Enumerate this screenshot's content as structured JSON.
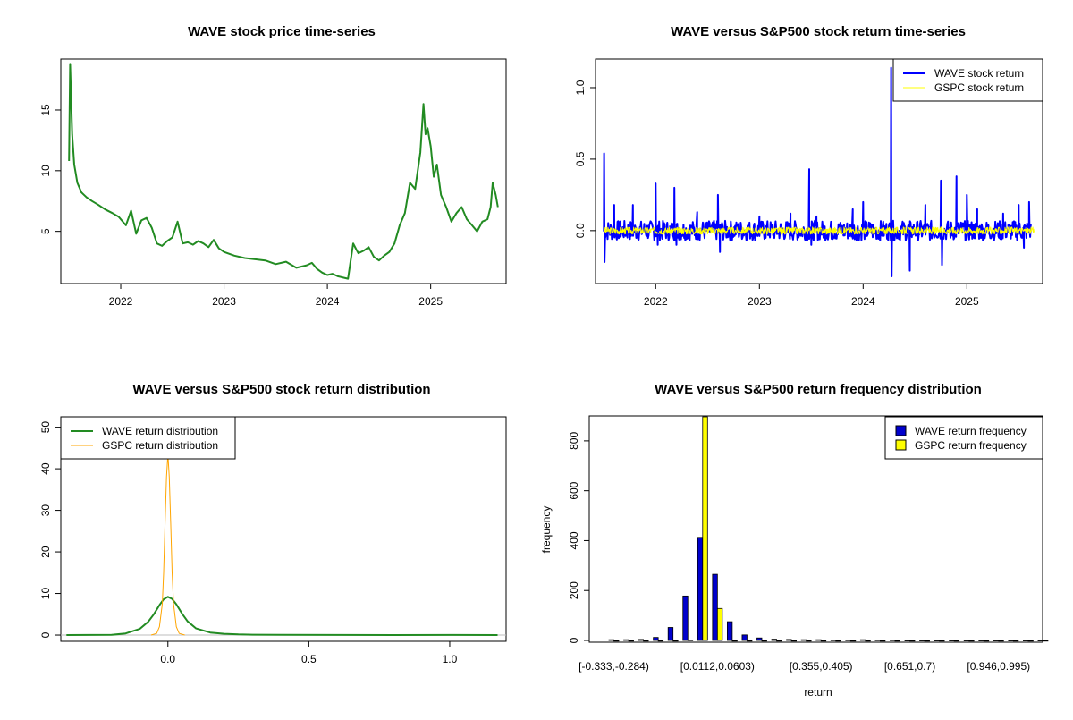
{
  "colors": {
    "wave_price": "#228B22",
    "wave_return": "#0000FF",
    "gspc_return": "#FFFF00",
    "wave_density": "#228B22",
    "gspc_density": "#FFA500",
    "wave_bar": "#0000CD",
    "gspc_bar": "#FFFF00",
    "axis": "#000000",
    "zero_line": "#BEBEBE"
  },
  "chart_data": [
    {
      "type": "line",
      "id": "price",
      "title": "WAVE stock price time-series",
      "xlabel": "",
      "ylabel": "",
      "xlim": [
        2021.42,
        2025.73
      ],
      "ylim": [
        0.7,
        19.2
      ],
      "x_ticks": [
        2022,
        2023,
        2024,
        2025
      ],
      "x_tick_labels": [
        "2022",
        "2023",
        "2024",
        "2025"
      ],
      "y_ticks": [
        5,
        10,
        15
      ],
      "y_tick_labels": [
        "5",
        "10",
        "15"
      ],
      "series": [
        {
          "name": "WAVE price",
          "x": [
            2021.5,
            2021.51,
            2021.53,
            2021.55,
            2021.58,
            2021.62,
            2021.67,
            2021.72,
            2021.78,
            2021.85,
            2021.92,
            2021.98,
            2022.05,
            2022.1,
            2022.15,
            2022.2,
            2022.25,
            2022.3,
            2022.35,
            2022.4,
            2022.45,
            2022.5,
            2022.55,
            2022.6,
            2022.65,
            2022.7,
            2022.75,
            2022.8,
            2022.85,
            2022.9,
            2022.95,
            2023.0,
            2023.1,
            2023.2,
            2023.3,
            2023.4,
            2023.5,
            2023.6,
            2023.7,
            2023.8,
            2023.85,
            2023.9,
            2023.95,
            2024.0,
            2024.05,
            2024.1,
            2024.2,
            2024.25,
            2024.28,
            2024.3,
            2024.35,
            2024.4,
            2024.45,
            2024.5,
            2024.55,
            2024.6,
            2024.65,
            2024.7,
            2024.75,
            2024.8,
            2024.85,
            2024.9,
            2024.93,
            2024.95,
            2024.97,
            2025.0,
            2025.03,
            2025.06,
            2025.1,
            2025.15,
            2025.2,
            2025.25,
            2025.3,
            2025.35,
            2025.4,
            2025.45,
            2025.5,
            2025.55,
            2025.58,
            2025.6,
            2025.63,
            2025.65
          ],
          "values": [
            10.8,
            18.8,
            13.0,
            10.5,
            9.0,
            8.2,
            7.8,
            7.5,
            7.2,
            6.8,
            6.5,
            6.2,
            5.5,
            6.7,
            4.8,
            5.9,
            6.1,
            5.3,
            4.0,
            3.8,
            4.2,
            4.5,
            5.8,
            4.0,
            4.1,
            3.9,
            4.2,
            4.0,
            3.7,
            4.3,
            3.6,
            3.3,
            3.0,
            2.8,
            2.7,
            2.6,
            2.3,
            2.5,
            2.0,
            2.2,
            2.4,
            1.9,
            1.6,
            1.4,
            1.5,
            1.3,
            1.1,
            4.0,
            3.5,
            3.2,
            3.4,
            3.7,
            2.9,
            2.6,
            3.0,
            3.3,
            4.0,
            5.5,
            6.5,
            9.0,
            8.5,
            11.5,
            15.5,
            13.0,
            13.5,
            12.0,
            9.5,
            10.5,
            8.0,
            7.0,
            5.8,
            6.5,
            7.0,
            6.0,
            5.5,
            5.0,
            5.8,
            6.0,
            7.0,
            9.0,
            8.0,
            7.0
          ]
        }
      ]
    },
    {
      "type": "line",
      "id": "returns",
      "title": "WAVE versus S&P500 stock return time-series",
      "xlabel": "",
      "ylabel": "",
      "xlim": [
        2021.42,
        2025.73
      ],
      "ylim": [
        -0.37,
        1.2
      ],
      "x_ticks": [
        2022,
        2023,
        2024,
        2025
      ],
      "x_tick_labels": [
        "2022",
        "2023",
        "2024",
        "2025"
      ],
      "y_ticks": [
        0.0,
        0.5,
        1.0
      ],
      "y_tick_labels": [
        "0.0",
        "0.5",
        "1.0"
      ],
      "legend": {
        "placement": "top-right",
        "entries": [
          "WAVE stock return",
          "GSPC stock return"
        ]
      },
      "series": [
        {
          "name": "WAVE stock return",
          "x": [
            2021.5,
            2021.503,
            2021.507,
            2021.52,
            2021.6,
            2021.78,
            2022.0,
            2022.02,
            2022.18,
            2022.2,
            2022.4,
            2022.6,
            2022.62,
            2023.0,
            2023.3,
            2023.48,
            2023.5,
            2023.55,
            2023.9,
            2024.0,
            2024.27,
            2024.275,
            2024.28,
            2024.45,
            2024.6,
            2024.75,
            2024.76,
            2024.9,
            2025.0,
            2025.1,
            2025.35,
            2025.5,
            2025.55,
            2025.6,
            2025.62
          ],
          "values": [
            0.0,
            0.54,
            -0.22,
            0.0,
            0.18,
            0.18,
            0.33,
            -0.1,
            0.3,
            -0.1,
            0.13,
            0.25,
            -0.15,
            0.1,
            0.12,
            0.43,
            -0.1,
            0.1,
            0.15,
            0.2,
            1.14,
            -0.32,
            0.0,
            -0.28,
            0.18,
            0.35,
            -0.24,
            0.38,
            0.25,
            0.15,
            0.12,
            0.18,
            -0.12,
            0.2,
            -0.05
          ]
        },
        {
          "name": "GSPC stock return",
          "x": [
            2021.5,
            2025.65
          ],
          "values": [
            -0.03,
            0.03
          ]
        }
      ]
    },
    {
      "type": "line",
      "id": "density",
      "title": "WAVE versus S&P500 stock return distribution",
      "xlabel": "",
      "ylabel": "",
      "xlim": [
        -0.38,
        1.2
      ],
      "ylim": [
        -1.5,
        52.5
      ],
      "x_ticks": [
        0.0,
        0.5,
        1.0
      ],
      "x_tick_labels": [
        "0.0",
        "0.5",
        "1.0"
      ],
      "y_ticks": [
        0,
        10,
        20,
        30,
        40,
        50
      ],
      "y_tick_labels": [
        "0",
        "10",
        "20",
        "30",
        "40",
        "50"
      ],
      "legend": {
        "placement": "top-left",
        "entries": [
          "WAVE return distribution",
          "GSPC return distribution"
        ]
      },
      "series": [
        {
          "name": "WAVE return distribution",
          "x": [
            -0.36,
            -0.2,
            -0.15,
            -0.1,
            -0.07,
            -0.05,
            -0.03,
            -0.015,
            0.0,
            0.015,
            0.03,
            0.05,
            0.07,
            0.1,
            0.15,
            0.2,
            0.25,
            0.3,
            0.4,
            0.6,
            0.8,
            1.0,
            1.17
          ],
          "values": [
            0.0,
            0.05,
            0.4,
            1.5,
            3.2,
            5.0,
            7.2,
            8.6,
            9.2,
            8.7,
            7.4,
            5.2,
            3.3,
            1.6,
            0.6,
            0.3,
            0.15,
            0.1,
            0.05,
            0.02,
            0.01,
            0.02,
            0.0
          ]
        },
        {
          "name": "GSPC return distribution",
          "x": [
            -0.06,
            -0.04,
            -0.03,
            -0.02,
            -0.015,
            -0.01,
            -0.005,
            0.0,
            0.005,
            0.01,
            0.015,
            0.02,
            0.03,
            0.04,
            0.06
          ],
          "values": [
            0.0,
            0.4,
            2.0,
            7.5,
            15.0,
            27.0,
            38.0,
            43.5,
            38.0,
            27.0,
            15.0,
            7.5,
            2.0,
            0.4,
            0.0
          ]
        }
      ]
    },
    {
      "type": "bar",
      "id": "freq",
      "title": "WAVE versus S&P500 return frequency distribution",
      "xlabel": "return",
      "ylabel": "frequency",
      "ylim": [
        0,
        900
      ],
      "y_ticks": [
        0,
        200,
        400,
        600,
        800
      ],
      "y_tick_labels": [
        "0",
        "200",
        "400",
        "600",
        "800"
      ],
      "labeled_bins": [
        {
          "index": 0,
          "label": "[-0.333,-0.284)"
        },
        {
          "index": 7,
          "label": "[0.0112,0.0603)"
        },
        {
          "index": 14,
          "label": "[0.355,0.405)"
        },
        {
          "index": 20,
          "label": "[0.651,0.7)"
        },
        {
          "index": 26,
          "label": "[0.946,0.995)"
        }
      ],
      "legend": {
        "placement": "top-right",
        "entries": [
          "WAVE return frequency",
          "GSPC return frequency"
        ]
      },
      "series": [
        {
          "name": "WAVE return frequency",
          "values": [
            3,
            3,
            4,
            12,
            52,
            178,
            413,
            265,
            75,
            22,
            10,
            5,
            4,
            3,
            3,
            2,
            2,
            3,
            2,
            2,
            1,
            1,
            1,
            1,
            1,
            1,
            1,
            1,
            1,
            1
          ]
        },
        {
          "name": "GSPC return frequency",
          "values": [
            0,
            0,
            0,
            0,
            0,
            2,
            910,
            128,
            0,
            0,
            0,
            0,
            0,
            0,
            0,
            0,
            0,
            0,
            0,
            0,
            0,
            0,
            0,
            0,
            0,
            0,
            0,
            0,
            0,
            0
          ]
        }
      ]
    }
  ]
}
